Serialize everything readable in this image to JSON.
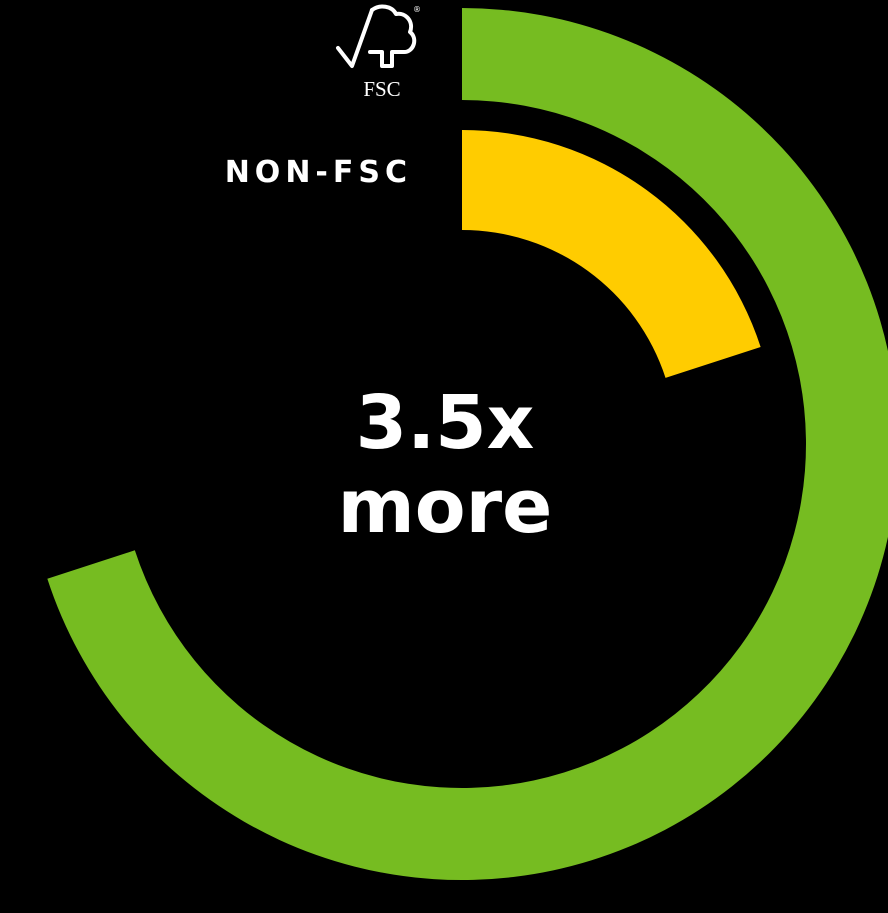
{
  "chart_data": {
    "type": "radial_bar",
    "series": [
      {
        "name": "FSC",
        "color": "#76bc21",
        "values": [
          70
        ]
      },
      {
        "name": "NON-FSC",
        "color": "#ffcc00",
        "values": [
          20
        ]
      }
    ],
    "ylim": [
      0,
      100
    ],
    "registered": "®",
    "annotation": [
      "3.5x",
      "more"
    ]
  }
}
